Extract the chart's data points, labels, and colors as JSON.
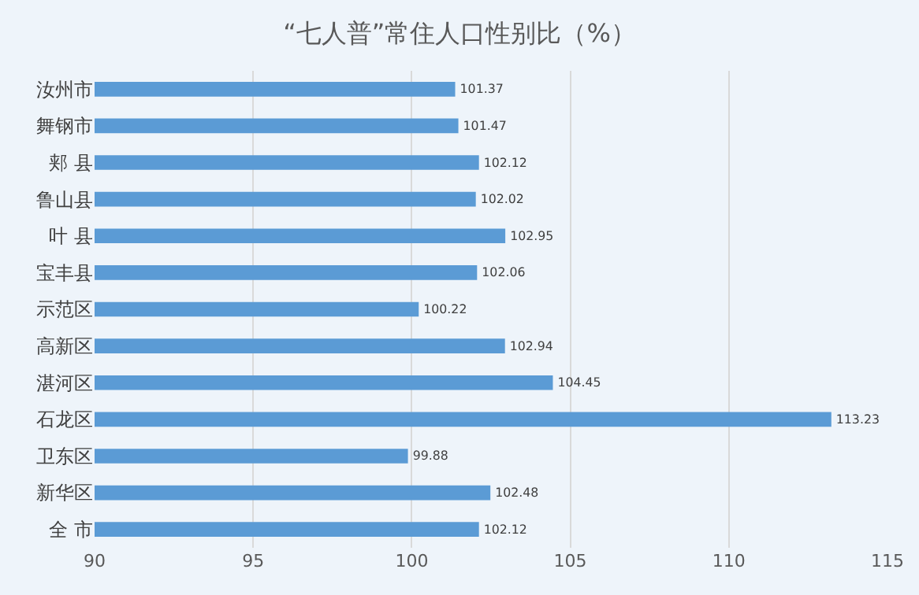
{
  "chart_data": {
    "type": "bar",
    "orientation": "horizontal",
    "title": "“七人普”常住人口性别比（%）",
    "categories": [
      "汝州市",
      "舞钢市",
      "郏 县",
      "鲁山县",
      "叶 县",
      "宝丰县",
      "示范区",
      "高新区",
      "湛河区",
      "石龙区",
      "卫东区",
      "新华区",
      "全 市"
    ],
    "values": [
      101.37,
      101.47,
      102.12,
      102.02,
      102.95,
      102.06,
      100.22,
      102.94,
      104.45,
      113.23,
      99.88,
      102.48,
      102.12
    ],
    "color": "#5b9bd5",
    "xlim": [
      90,
      115
    ],
    "xticks": [
      90,
      95,
      100,
      105,
      110,
      115
    ],
    "grid": "x",
    "data_labels": true
  }
}
